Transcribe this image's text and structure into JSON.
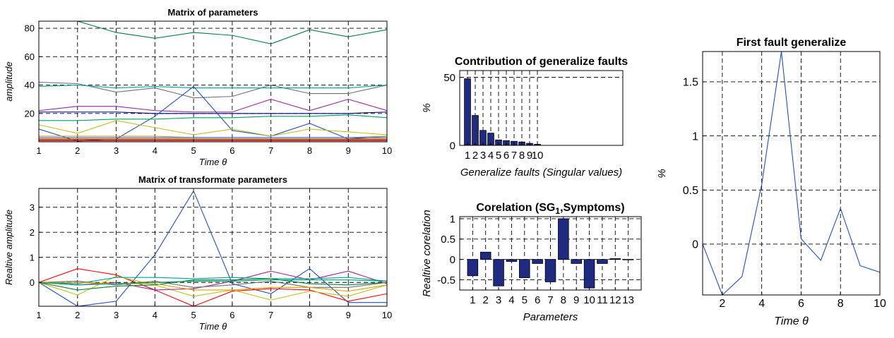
{
  "chart_data": [
    {
      "id": "matrix_params",
      "type": "line",
      "title": "Matrix of parameters",
      "xlabel": "Time θ",
      "ylabel": "amplitude",
      "x": [
        1,
        2,
        3,
        4,
        5,
        6,
        7,
        8,
        9,
        10
      ],
      "xlim": [
        1,
        10
      ],
      "ylim": [
        0,
        85
      ],
      "xticks": [
        1,
        2,
        3,
        4,
        5,
        6,
        7,
        8,
        9,
        10
      ],
      "yticks": [
        20,
        40,
        60,
        80
      ],
      "grid": true,
      "series": [
        {
          "color": "#008040",
          "values": [
            85,
            85,
            77,
            73,
            77,
            75,
            69,
            79,
            74,
            79
          ]
        },
        {
          "color": "#707070",
          "values": [
            42,
            41,
            35,
            38,
            31,
            32,
            40,
            34,
            34,
            40
          ]
        },
        {
          "color": "#00a0a0",
          "values": [
            39,
            40,
            38,
            39,
            38,
            38,
            38,
            38,
            38,
            40
          ]
        },
        {
          "color": "#a020a0",
          "values": [
            22,
            25,
            25,
            22,
            21,
            21,
            30,
            22,
            30,
            22
          ]
        },
        {
          "color": "#000080",
          "values": [
            21,
            21,
            21,
            20,
            20,
            20,
            20,
            20,
            20,
            21
          ]
        },
        {
          "color": "#2050c0",
          "values": [
            9,
            0.5,
            2,
            18,
            39,
            8,
            4,
            13,
            2,
            4
          ]
        },
        {
          "color": "#00a060",
          "values": [
            15,
            15,
            16,
            16,
            17,
            17,
            18,
            18,
            19,
            17
          ]
        },
        {
          "color": "#c0c020",
          "values": [
            12,
            6,
            15,
            10,
            5,
            9,
            4,
            9,
            7,
            5
          ]
        },
        {
          "color": "#e0a000",
          "values": [
            4,
            4,
            4,
            4,
            3,
            3,
            3,
            3,
            3,
            4
          ]
        },
        {
          "color": "#ff0000",
          "values": [
            1.5,
            1.5,
            1.5,
            1.5,
            1.5,
            1.5,
            1.5,
            1.5,
            1.5,
            1.5
          ]
        },
        {
          "color": "#3060ff",
          "values": [
            3,
            3,
            3,
            3,
            3,
            3,
            3,
            3,
            3,
            3
          ]
        },
        {
          "color": "#808000",
          "values": [
            2,
            2,
            2,
            2,
            2,
            2,
            2,
            2,
            2,
            2
          ]
        },
        {
          "color": "#c00000",
          "values": [
            0.8,
            0.8,
            0.8,
            0.8,
            0.8,
            0.8,
            0.8,
            0.8,
            0.8,
            0.8
          ]
        }
      ]
    },
    {
      "id": "matrix_transformed",
      "type": "line",
      "title": "Matrix of transformate parameters",
      "xlabel": "Time θ",
      "ylabel": "Realtive amplitude",
      "x": [
        1,
        2,
        3,
        4,
        5,
        6,
        7,
        8,
        9,
        10
      ],
      "xlim": [
        1,
        10
      ],
      "ylim": [
        -0.95,
        3.75
      ],
      "xticks": [
        1,
        2,
        3,
        4,
        5,
        6,
        7,
        8,
        9,
        10
      ],
      "yticks": [
        0,
        1,
        2,
        3
      ],
      "grid": true,
      "series": [
        {
          "color": "#2050c0",
          "values": [
            0,
            -0.95,
            -0.75,
            1.1,
            3.65,
            -0.05,
            -0.45,
            0.55,
            -0.8,
            -0.8
          ]
        },
        {
          "color": "#ff0000",
          "values": [
            0,
            0.55,
            0.3,
            -0.3,
            -0.95,
            -0.35,
            -0.25,
            -0.3,
            -0.75,
            -0.45
          ]
        },
        {
          "color": "#c0c020",
          "values": [
            0,
            -0.5,
            0.25,
            -0.1,
            -0.55,
            -0.3,
            -0.7,
            -0.35,
            -0.55,
            -0.1
          ]
        },
        {
          "color": "#a020a0",
          "values": [
            0,
            -0.1,
            0,
            -0.3,
            -0.25,
            0.05,
            0.45,
            0.1,
            0.45,
            -0.05
          ]
        },
        {
          "color": "#00a0a0",
          "values": [
            0,
            -0.05,
            0.2,
            0.2,
            0.15,
            0.2,
            0.15,
            0.15,
            0.2,
            0.05
          ]
        },
        {
          "color": "#008040",
          "values": [
            0,
            -0.3,
            -0.15,
            -0.1,
            0.1,
            0.1,
            0.15,
            -0.05,
            -0.1,
            0
          ]
        },
        {
          "color": "#707070",
          "values": [
            0,
            0.05,
            -0.1,
            0.05,
            -0.2,
            -0.1,
            0.05,
            -0.2,
            -0.2,
            0
          ]
        },
        {
          "color": "#e0a000",
          "values": [
            0,
            0,
            -0.05,
            -0.05,
            -0.3,
            -0.3,
            -0.2,
            -0.2,
            -0.35,
            -0.1
          ]
        },
        {
          "color": "#00a060",
          "values": [
            0,
            -0.1,
            -0.05,
            0,
            0.05,
            0.05,
            0.1,
            0.1,
            0.1,
            0.05
          ]
        }
      ]
    },
    {
      "id": "contribution",
      "type": "bar",
      "title": "Contribution of generalize faults",
      "xlabel": "Generalize faults (Singular values)",
      "ylabel": "%",
      "right_label": "%",
      "categories": [
        "1",
        "2",
        "3",
        "4",
        "5",
        "6",
        "7",
        "8",
        "9",
        "10"
      ],
      "values": [
        49,
        22,
        11,
        9,
        4,
        3.5,
        3,
        2.5,
        1.5,
        0.8
      ],
      "xlim": [
        0,
        21
      ],
      "ylim": [
        0,
        55
      ],
      "yticks": [
        0,
        50
      ],
      "grid": true,
      "bar_color": "#202a80"
    },
    {
      "id": "correlation",
      "type": "bar",
      "title": "Corelation (SG",
      "title_sub": "1",
      "title_tail": ",Symptoms)",
      "xlabel": "Parameters",
      "ylabel": "Realtive corelation",
      "categories": [
        "1",
        "2",
        "3",
        "4",
        "5",
        "6",
        "7",
        "8",
        "9",
        "10",
        "11",
        "12",
        "13"
      ],
      "values": [
        -0.4,
        0.18,
        -0.65,
        -0.05,
        -0.45,
        -0.1,
        -0.55,
        1.0,
        -0.1,
        -0.7,
        -0.1,
        0.02,
        0
      ],
      "xlim": [
        0,
        14
      ],
      "ylim": [
        -0.75,
        1.05
      ],
      "yticks": [
        -0.5,
        0,
        0.5,
        1
      ],
      "ytick_labels": [
        "-0.5",
        "0",
        "0.5",
        "1"
      ],
      "grid": true,
      "bar_color": "#202a80"
    },
    {
      "id": "first_fault",
      "type": "line",
      "title": "First fault generalize",
      "xlabel": "Time θ",
      "ylabel": "",
      "x": [
        1,
        2,
        3,
        4,
        5,
        6,
        7,
        8,
        9,
        10
      ],
      "xlim": [
        1,
        10
      ],
      "ylim": [
        -0.47,
        1.78
      ],
      "xticks": [
        2,
        4,
        6,
        8,
        10
      ],
      "yticks": [
        0,
        0.5,
        1,
        1.5
      ],
      "ytick_labels": [
        "0",
        "0.5",
        "1",
        "1.5"
      ],
      "grid": true,
      "series": [
        {
          "color": "#2050c0",
          "values": [
            0,
            -0.47,
            -0.3,
            0.55,
            1.78,
            0.05,
            -0.15,
            0.33,
            -0.2,
            -0.26
          ]
        }
      ]
    }
  ]
}
